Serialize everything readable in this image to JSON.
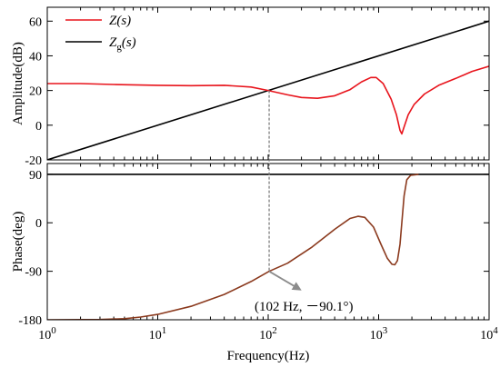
{
  "chart_data": [
    {
      "type": "line",
      "panel": "amplitude",
      "ylabel": "Amplitude(dB)",
      "xscale": "log",
      "xlim": [
        1,
        10000
      ],
      "ylim": [
        -20,
        68
      ],
      "yticks": [
        -20,
        0,
        20,
        40,
        60
      ],
      "legend": {
        "placement": "top-left",
        "entries": [
          {
            "name_main": "Z",
            "name_sub": "",
            "name_args": "(s)",
            "color": "#e8141c"
          },
          {
            "name_main": "Z",
            "name_sub": "g",
            "name_args": "(s)",
            "color": "#000000"
          }
        ]
      },
      "series": [
        {
          "name": "Z(s)",
          "color": "#e8141c",
          "points": [
            [
              1,
              24
            ],
            [
              2,
              24
            ],
            [
              4,
              23.5
            ],
            [
              10,
              23
            ],
            [
              20,
              22.8
            ],
            [
              40,
              23
            ],
            [
              70,
              22
            ],
            [
              100,
              20
            ],
            [
              150,
              17.5
            ],
            [
              200,
              16
            ],
            [
              280,
              15.5
            ],
            [
              400,
              17
            ],
            [
              550,
              20.5
            ],
            [
              700,
              25
            ],
            [
              850,
              27.5
            ],
            [
              950,
              27.5
            ],
            [
              1100,
              24
            ],
            [
              1300,
              15
            ],
            [
              1450,
              6
            ],
            [
              1560,
              -3
            ],
            [
              1620,
              -5
            ],
            [
              1700,
              -1
            ],
            [
              1850,
              6
            ],
            [
              2100,
              12
            ],
            [
              2600,
              18
            ],
            [
              3500,
              23
            ],
            [
              5000,
              27
            ],
            [
              7000,
              31
            ],
            [
              10000,
              34
            ]
          ]
        },
        {
          "name": "Zg(s)",
          "color": "#000000",
          "points": [
            [
              1,
              -20
            ],
            [
              10000,
              60
            ]
          ]
        }
      ]
    },
    {
      "type": "line",
      "panel": "phase",
      "ylabel": "Phase(deg)",
      "xlabel": "Frequency(Hz)",
      "xscale": "log",
      "xlim": [
        1,
        10000
      ],
      "ylim": [
        -180,
        110
      ],
      "yticks": [
        -180,
        -90,
        0,
        90
      ],
      "xticks": [
        1,
        10,
        100,
        1000,
        10000
      ],
      "xtick_bases": [
        "10",
        "10",
        "10",
        "10",
        "10"
      ],
      "xtick_exps": [
        "0",
        "1",
        "2",
        "3",
        "4"
      ],
      "series": [
        {
          "name": "Z(s)",
          "color": "#8b3a1e",
          "points": [
            [
              1,
              -180
            ],
            [
              3,
              -179.5
            ],
            [
              5,
              -178
            ],
            [
              7,
              -175
            ],
            [
              10,
              -170
            ],
            [
              20,
              -155
            ],
            [
              40,
              -133
            ],
            [
              70,
              -109
            ],
            [
              102,
              -90.1
            ],
            [
              150,
              -75
            ],
            [
              250,
              -45
            ],
            [
              400,
              -12
            ],
            [
              550,
              8
            ],
            [
              650,
              12
            ],
            [
              750,
              10
            ],
            [
              900,
              -8
            ],
            [
              1050,
              -40
            ],
            [
              1200,
              -66
            ],
            [
              1320,
              -77
            ],
            [
              1400,
              -78
            ],
            [
              1480,
              -70
            ],
            [
              1560,
              -40
            ],
            [
              1620,
              0
            ],
            [
              1700,
              50
            ],
            [
              1800,
              80
            ],
            [
              1950,
              88
            ],
            [
              2300,
              90
            ]
          ]
        },
        {
          "name": "Zg(s)",
          "color": "#000000",
          "points": [
            [
              1,
              90
            ],
            [
              10000,
              90
            ]
          ]
        }
      ],
      "annotation": {
        "text": "(102 Hz, －90.1°)",
        "x": 102,
        "y": -90.1
      }
    }
  ]
}
